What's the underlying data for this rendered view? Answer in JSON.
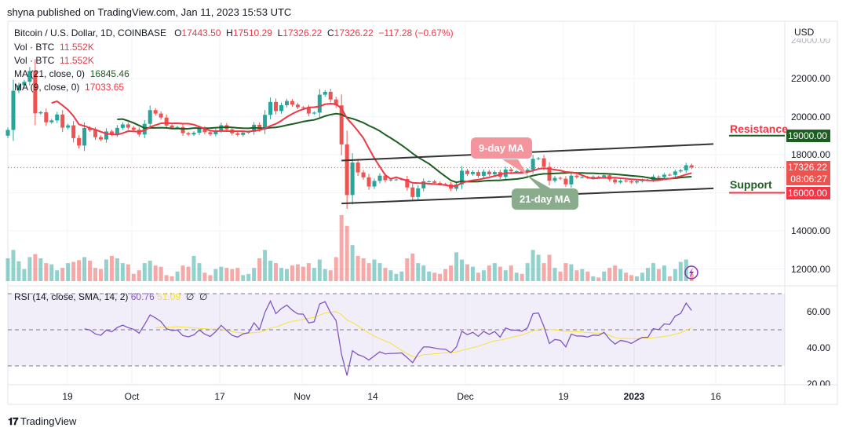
{
  "header": {
    "published": "shyna published on TradingView.com, Jan 11, 2023 15:53 UTC"
  },
  "legend": {
    "symbol": "Bitcoin / U.S. Dollar, 1D, COINBASE",
    "open_label": "O",
    "open": "17443.50",
    "high_label": "H",
    "high": "17510.29",
    "low_label": "L",
    "low": "17326.22",
    "close_label": "C",
    "close": "17326.22",
    "change": "−117.28 (−0.67%)",
    "vol1_label": "Vol · BTC",
    "vol1": "11.552K",
    "vol2_label": "Vol · BTC",
    "vol2": "11.552K",
    "ma21_label": "MA (21, close, 0)",
    "ma21": "16845.46",
    "ma9_label": "MA (9, close, 0)",
    "ma9": "17033.65",
    "rsi_label": "RSI (14, close, SMA, 14, 2)",
    "rsi": "60.76",
    "rsi_sma": "51.09",
    "rsi_extra1": "∅",
    "rsi_extra2": "∅"
  },
  "price_axis": {
    "currency": "USD",
    "ticks": [
      "24000.00",
      "22000.00",
      "20000.00",
      "18000.00",
      "14000.00",
      "12000.00"
    ],
    "last_price": "17326.22",
    "countdown": "08:06:27",
    "resistance_price": "19000.00",
    "support_price": "16000.00"
  },
  "rsi_axis": {
    "ticks": [
      "60.00",
      "40.00",
      "20.00"
    ]
  },
  "time_axis": {
    "ticks": [
      "19",
      "Oct",
      "17",
      "Nov",
      "14",
      "Dec",
      "19",
      "2023",
      "16"
    ]
  },
  "annotations": {
    "resistance": "Resistance",
    "support": "Support",
    "ma9_bubble": "9-day MA",
    "ma21_bubble": "21-day MA"
  },
  "footer": {
    "brand": "TradingView"
  },
  "colors": {
    "up": "#26a69a",
    "down": "#ef5350",
    "ma9": "#f23645",
    "ma21": "#1b5e20",
    "rsi": "#7e57c2",
    "rsi_sma": "#f7e13a",
    "resistance": "#1b5e20",
    "support": "#f23645"
  },
  "chart_data": {
    "type": "candlestick",
    "start_date": "2022-09-08",
    "interval": "1D",
    "closes": [
      19300,
      21360,
      21650,
      21830,
      22400,
      20170,
      20230,
      19700,
      19800,
      20110,
      19420,
      19540,
      18870,
      18480,
      19400,
      19290,
      18920,
      18800,
      19220,
      19080,
      19410,
      19590,
      19420,
      19310,
      19060,
      19620,
      20340,
      20160,
      19950,
      19530,
      19420,
      19450,
      19130,
      19060,
      19150,
      19380,
      19180,
      19070,
      19270,
      19550,
      19330,
      19120,
      19040,
      19160,
      19200,
      19570,
      19330,
      20090,
      20770,
      20290,
      20600,
      20820,
      20630,
      20490,
      20480,
      20160,
      20210,
      21150,
      21300,
      20900,
      20590,
      18540,
      15880,
      17590,
      17070,
      16810,
      16330,
      16620,
      16900,
      16660,
      16690,
      16700,
      16720,
      16280,
      15780,
      16230,
      16600,
      16600,
      16520,
      16460,
      16440,
      16210,
      16440,
      17160,
      16980,
      17090,
      16890,
      17110,
      16970,
      17090,
      16840,
      17220,
      17130,
      17130,
      17090,
      17210,
      17780,
      17810,
      17360,
      16630,
      16780,
      16740,
      16440,
      16900,
      16820,
      16820,
      16780,
      16840,
      16830,
      16920,
      16700,
      16540,
      16630,
      16600,
      16540,
      16610,
      16670,
      16670,
      16850,
      16830,
      16950,
      16940,
      17120,
      17180,
      17443.5,
      17326.22
    ],
    "volumes": [
      38,
      52,
      33,
      20,
      40,
      45,
      38,
      30,
      28,
      18,
      22,
      30,
      32,
      35,
      40,
      34,
      22,
      20,
      36,
      42,
      38,
      30,
      28,
      12,
      18,
      30,
      34,
      26,
      24,
      10,
      8,
      16,
      26,
      24,
      42,
      30,
      14,
      10,
      20,
      24,
      22,
      20,
      22,
      10,
      12,
      22,
      38,
      52,
      34,
      30,
      22,
      20,
      26,
      28,
      24,
      30,
      22,
      36,
      20,
      18,
      40,
      110,
      92,
      60,
      42,
      38,
      30,
      36,
      30,
      22,
      18,
      12,
      16,
      38,
      46,
      30,
      26,
      16,
      14,
      12,
      20,
      26,
      48,
      36,
      28,
      24,
      14,
      18,
      26,
      30,
      24,
      18,
      26,
      14,
      12,
      30,
      52,
      44,
      30,
      44,
      22,
      16,
      30,
      28,
      18,
      20,
      16,
      8,
      6,
      16,
      22,
      26,
      20,
      14,
      10,
      8,
      14,
      22,
      30,
      20,
      26,
      8,
      20,
      32,
      36,
      12
    ],
    "ma_periods": [
      9,
      21
    ],
    "rsi": {
      "period": 14,
      "sma": 14,
      "levels": [
        70,
        50,
        30
      ]
    },
    "channel": {
      "upper": [
        [
          "2022-11-08",
          17690
        ],
        [
          "2023-01-15",
          18560
        ]
      ],
      "lower": [
        [
          "2022-11-08",
          15440
        ],
        [
          "2023-01-15",
          16230
        ]
      ]
    },
    "horizontal_levels": {
      "resistance": 19000,
      "support": 16000
    },
    "price_range": [
      11000,
      24500
    ],
    "rsi_range": [
      17,
      82
    ]
  }
}
